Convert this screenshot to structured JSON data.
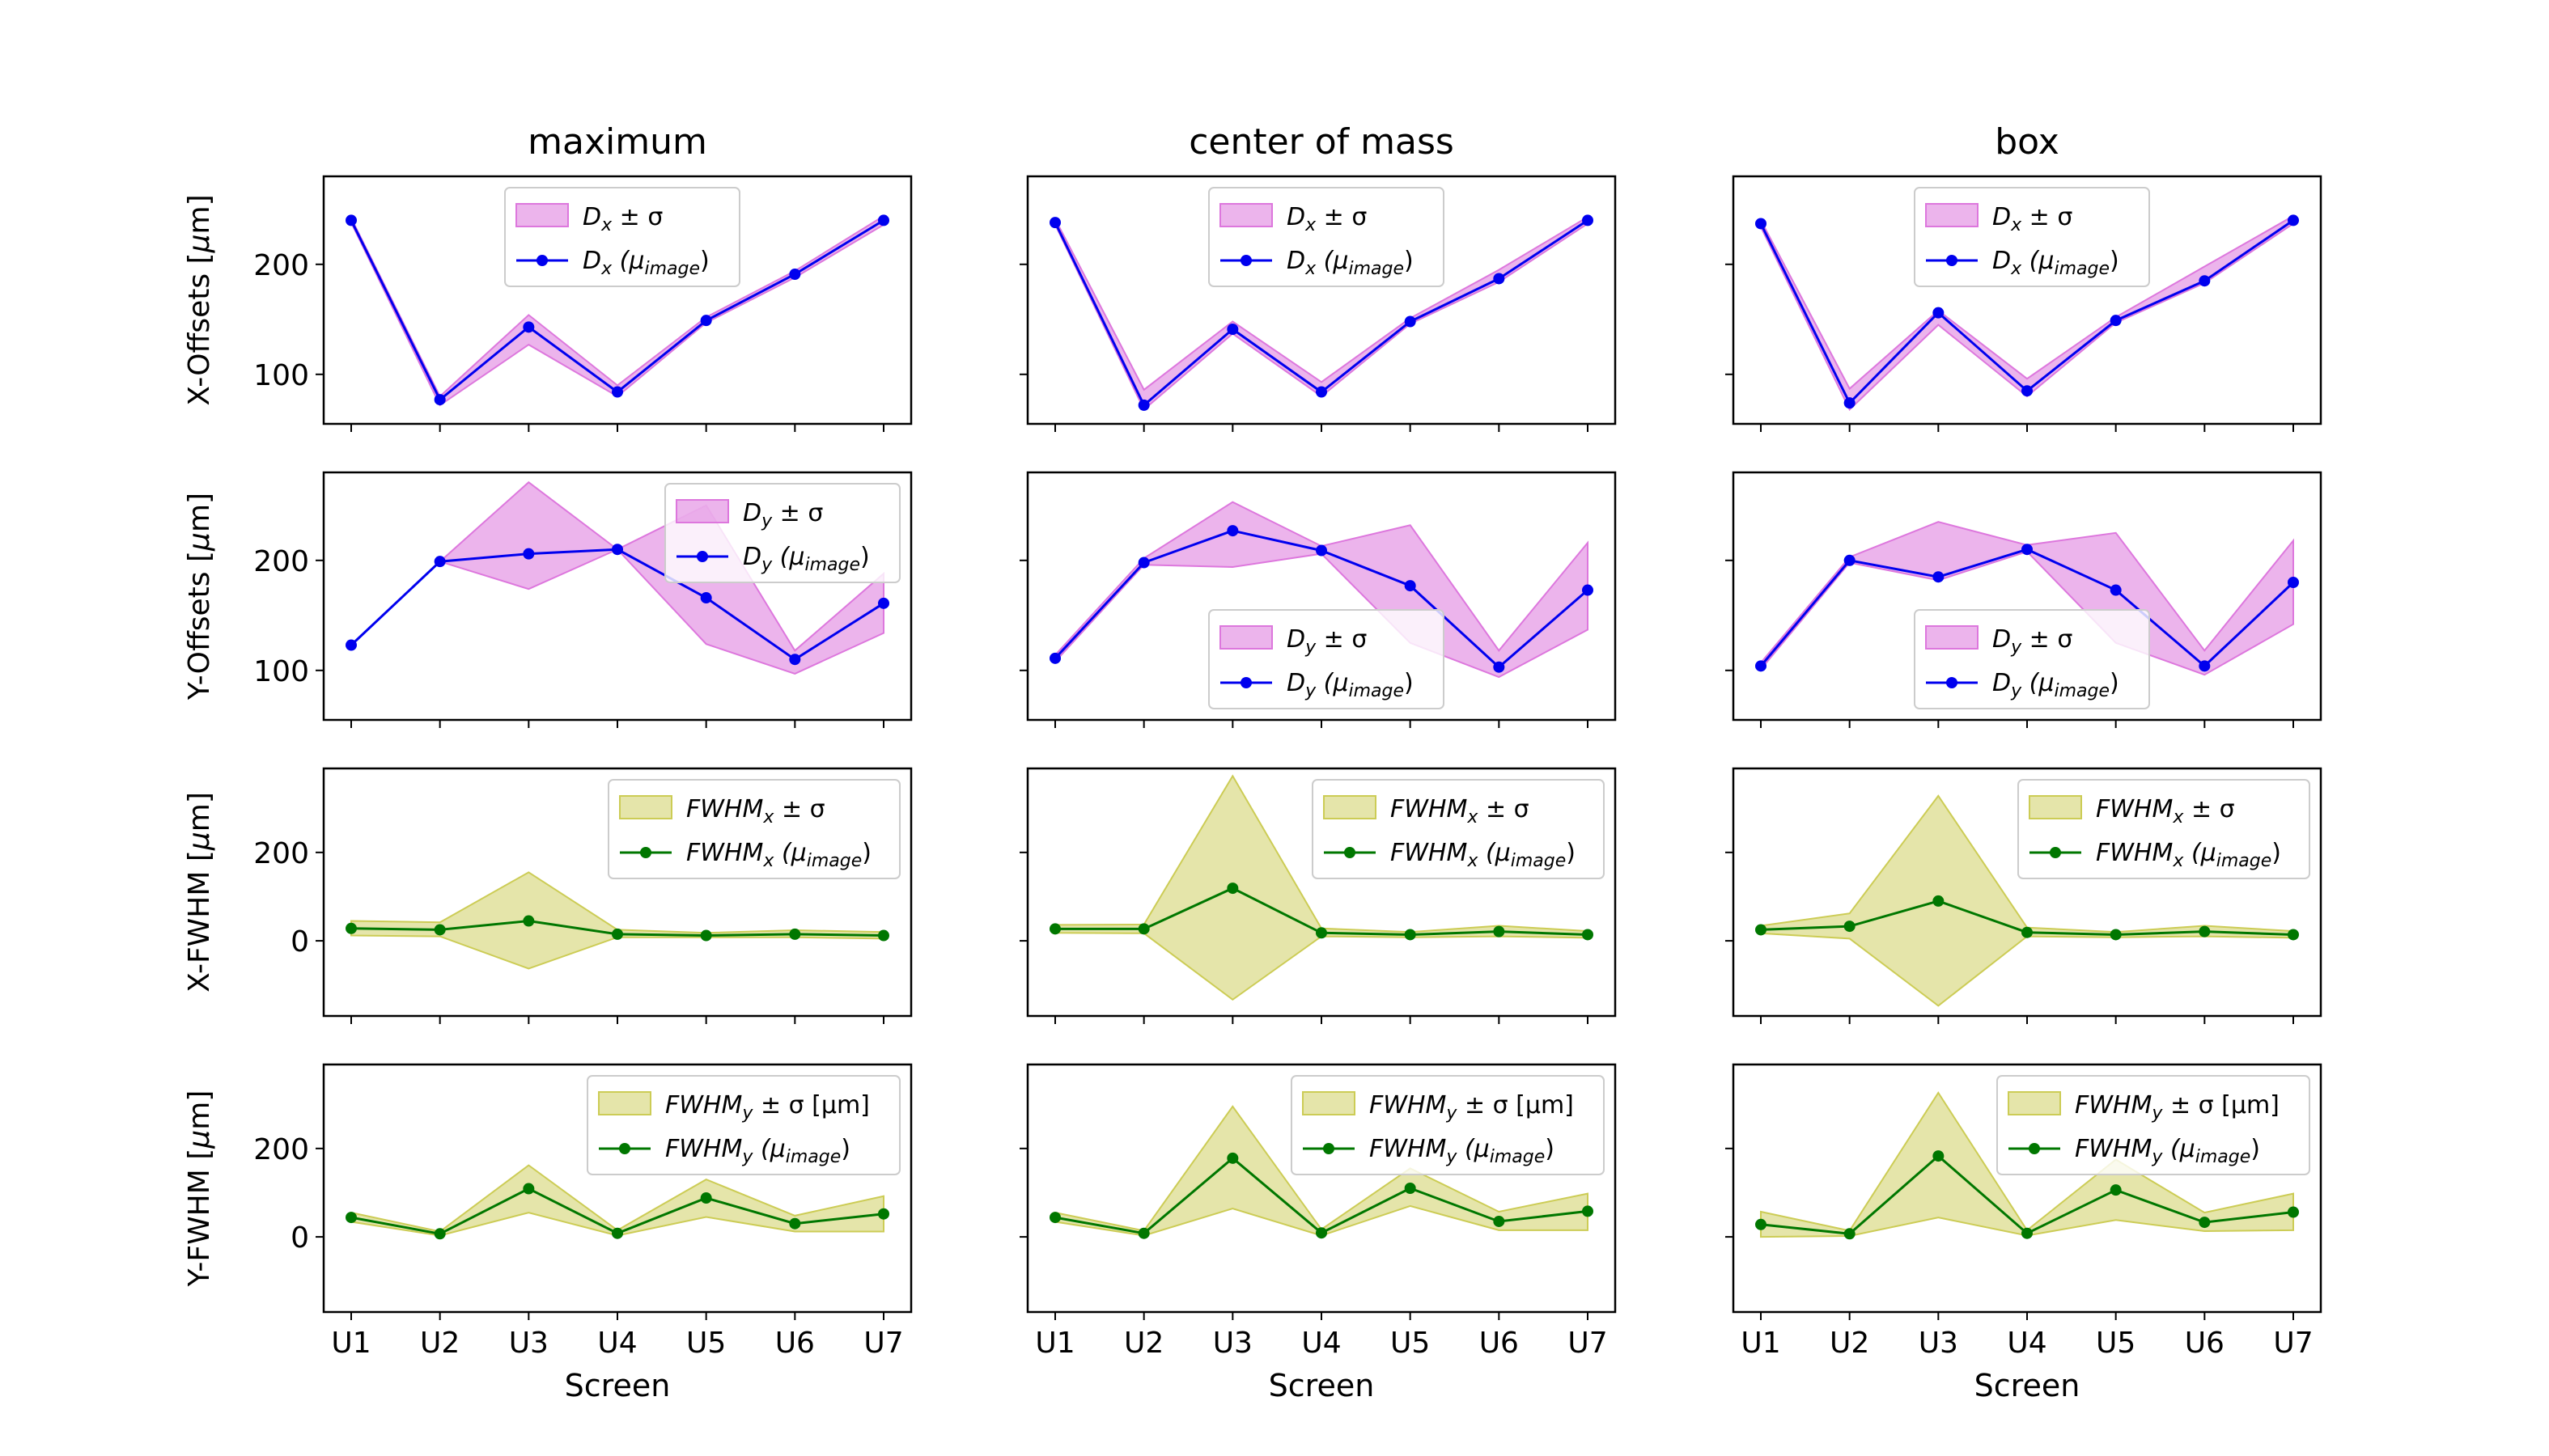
{
  "figure": {
    "xlabel": "Screen",
    "categories": [
      "U1",
      "U2",
      "U3",
      "U4",
      "U5",
      "U6",
      "U7"
    ],
    "columns": [
      {
        "title": "maximum"
      },
      {
        "title": "center of mass"
      },
      {
        "title": "box"
      }
    ],
    "rows": [
      {
        "ylabel_pre": "X-Offsets [",
        "ylabel_sym": "μ",
        "ylabel_post": "m]",
        "ylim": [
          55,
          280
        ],
        "yticks": [
          100,
          200
        ],
        "band_color": "#dd77dd",
        "band_alpha": 0.55,
        "line_color": "#0000ee",
        "legend": {
          "band": {
            "base": "D",
            "sub": "x",
            "suffix": " ± σ"
          },
          "line": {
            "base": "D",
            "sub": "x",
            "suffix_pre": " (μ",
            "suffix_sub": "image",
            "suffix_post": ")"
          }
        }
      },
      {
        "ylabel_pre": "Y-Offsets [",
        "ylabel_sym": "μ",
        "ylabel_post": "m]",
        "ylim": [
          55,
          280
        ],
        "yticks": [
          100,
          200
        ],
        "band_color": "#dd77dd",
        "band_alpha": 0.55,
        "line_color": "#0000ee",
        "legend": {
          "band": {
            "base": "D",
            "sub": "y",
            "suffix": " ± σ"
          },
          "line": {
            "base": "D",
            "sub": "y",
            "suffix_pre": " (μ",
            "suffix_sub": "image",
            "suffix_post": ")"
          }
        }
      },
      {
        "ylabel_pre": "X-FWHM [",
        "ylabel_sym": "μ",
        "ylabel_post": "m]",
        "ylim": [
          -170,
          390
        ],
        "yticks": [
          0,
          200
        ],
        "band_color": "#cccc55",
        "band_alpha": 0.5,
        "line_color": "#007700",
        "legend": {
          "band": {
            "base": "FWHM",
            "sub": "x",
            "suffix": " ± σ"
          },
          "line": {
            "base": "FWHM",
            "sub": "x",
            "suffix_pre": " (μ",
            "suffix_sub": "image",
            "suffix_post": ")"
          }
        }
      },
      {
        "ylabel_pre": "Y-FWHM [",
        "ylabel_sym": "μ",
        "ylabel_post": "m]",
        "ylim": [
          -170,
          390
        ],
        "yticks": [
          0,
          200
        ],
        "band_color": "#cccc55",
        "band_alpha": 0.5,
        "line_color": "#007700",
        "legend": {
          "band": {
            "base": "FWHM",
            "sub": "y",
            "suffix": " ± σ [μm]"
          },
          "line": {
            "base": "FWHM",
            "sub": "y",
            "suffix_pre": " (μ",
            "suffix_sub": "image",
            "suffix_post": ")"
          }
        }
      }
    ]
  },
  "chart_data": [
    {
      "type": "line",
      "row": "X-Offsets",
      "column": "maximum",
      "legend_pos": "top-center",
      "x": [
        "U1",
        "U2",
        "U3",
        "U4",
        "U5",
        "U6",
        "U7"
      ],
      "values": [
        240,
        77,
        143,
        84,
        149,
        191,
        240
      ],
      "band_lower": [
        238,
        72,
        127,
        80,
        147,
        188,
        236
      ],
      "band_upper": [
        242,
        80,
        154,
        90,
        152,
        194,
        244
      ]
    },
    {
      "type": "line",
      "row": "X-Offsets",
      "column": "center of mass",
      "legend_pos": "top-center",
      "x": [
        "U1",
        "U2",
        "U3",
        "U4",
        "U5",
        "U6",
        "U7"
      ],
      "values": [
        238,
        72,
        141,
        84,
        148,
        187,
        240
      ],
      "band_lower": [
        236,
        68,
        137,
        80,
        146,
        184,
        237
      ],
      "band_upper": [
        241,
        86,
        148,
        93,
        151,
        195,
        243
      ]
    },
    {
      "type": "line",
      "row": "X-Offsets",
      "column": "box",
      "legend_pos": "top-center",
      "x": [
        "U1",
        "U2",
        "U3",
        "U4",
        "U5",
        "U6",
        "U7"
      ],
      "values": [
        237,
        74,
        156,
        85,
        149,
        185,
        240
      ],
      "band_lower": [
        234,
        68,
        145,
        80,
        147,
        183,
        237
      ],
      "band_upper": [
        240,
        87,
        158,
        96,
        152,
        198,
        244
      ]
    },
    {
      "type": "line",
      "row": "Y-Offsets",
      "column": "maximum",
      "legend_pos": "top-right",
      "x": [
        "U1",
        "U2",
        "U3",
        "U4",
        "U5",
        "U6",
        "U7"
      ],
      "values": [
        123,
        199,
        206,
        210,
        166,
        110,
        161
      ],
      "band_lower": [
        123,
        199,
        174,
        210,
        124,
        97,
        134
      ],
      "band_upper": [
        123,
        199,
        271,
        210,
        250,
        118,
        188
      ]
    },
    {
      "type": "line",
      "row": "Y-Offsets",
      "column": "center of mass",
      "legend_pos": "bottom-center",
      "x": [
        "U1",
        "U2",
        "U3",
        "U4",
        "U5",
        "U6",
        "U7"
      ],
      "values": [
        111,
        198,
        227,
        209,
        177,
        103,
        173
      ],
      "band_lower": [
        108,
        196,
        194,
        206,
        125,
        94,
        137
      ],
      "band_upper": [
        114,
        202,
        253,
        213,
        232,
        118,
        216
      ]
    },
    {
      "type": "line",
      "row": "Y-Offsets",
      "column": "box",
      "legend_pos": "bottom-center",
      "x": [
        "U1",
        "U2",
        "U3",
        "U4",
        "U5",
        "U6",
        "U7"
      ],
      "values": [
        104,
        200,
        185,
        210,
        173,
        104,
        180
      ],
      "band_lower": [
        101,
        198,
        182,
        208,
        125,
        96,
        142
      ],
      "band_upper": [
        107,
        203,
        235,
        214,
        225,
        118,
        218
      ]
    },
    {
      "type": "line",
      "row": "X-FWHM",
      "column": "maximum",
      "legend_pos": "top-right",
      "x": [
        "U1",
        "U2",
        "U3",
        "U4",
        "U5",
        "U6",
        "U7"
      ],
      "values": [
        28,
        25,
        45,
        15,
        12,
        15,
        12
      ],
      "band_lower": [
        12,
        10,
        -63,
        8,
        8,
        8,
        5
      ],
      "band_upper": [
        45,
        42,
        155,
        25,
        18,
        24,
        20
      ]
    },
    {
      "type": "line",
      "row": "X-FWHM",
      "column": "center of mass",
      "legend_pos": "top-right",
      "x": [
        "U1",
        "U2",
        "U3",
        "U4",
        "U5",
        "U6",
        "U7"
      ],
      "values": [
        27,
        27,
        119,
        18,
        14,
        21,
        14
      ],
      "band_lower": [
        18,
        17,
        -133,
        10,
        8,
        10,
        7
      ],
      "band_upper": [
        36,
        37,
        373,
        28,
        20,
        34,
        22
      ]
    },
    {
      "type": "line",
      "row": "X-FWHM",
      "column": "box",
      "legend_pos": "top-right",
      "x": [
        "U1",
        "U2",
        "U3",
        "U4",
        "U5",
        "U6",
        "U7"
      ],
      "values": [
        25,
        33,
        90,
        19,
        14,
        21,
        14
      ],
      "band_lower": [
        17,
        5,
        -147,
        10,
        8,
        10,
        7
      ],
      "band_upper": [
        34,
        62,
        328,
        30,
        20,
        34,
        22
      ]
    },
    {
      "type": "line",
      "row": "Y-FWHM",
      "column": "maximum",
      "legend_pos": "top-right",
      "x": [
        "U1",
        "U2",
        "U3",
        "U4",
        "U5",
        "U6",
        "U7"
      ],
      "values": [
        44,
        7,
        109,
        8,
        88,
        30,
        52
      ],
      "band_lower": [
        34,
        3,
        55,
        3,
        45,
        12,
        12
      ],
      "band_upper": [
        55,
        12,
        162,
        15,
        130,
        48,
        92
      ]
    },
    {
      "type": "line",
      "row": "Y-FWHM",
      "column": "center of mass",
      "legend_pos": "top-right",
      "x": [
        "U1",
        "U2",
        "U3",
        "U4",
        "U5",
        "U6",
        "U7"
      ],
      "values": [
        44,
        8,
        178,
        9,
        110,
        35,
        58
      ],
      "band_lower": [
        34,
        3,
        64,
        3,
        70,
        15,
        15
      ],
      "band_upper": [
        55,
        14,
        295,
        17,
        155,
        57,
        98
      ]
    },
    {
      "type": "line",
      "row": "Y-FWHM",
      "column": "box",
      "legend_pos": "top-right",
      "x": [
        "U1",
        "U2",
        "U3",
        "U4",
        "U5",
        "U6",
        "U7"
      ],
      "values": [
        28,
        7,
        183,
        8,
        106,
        33,
        56
      ],
      "band_lower": [
        0,
        2,
        44,
        3,
        38,
        13,
        15
      ],
      "band_upper": [
        57,
        14,
        326,
        15,
        175,
        55,
        98
      ]
    }
  ]
}
